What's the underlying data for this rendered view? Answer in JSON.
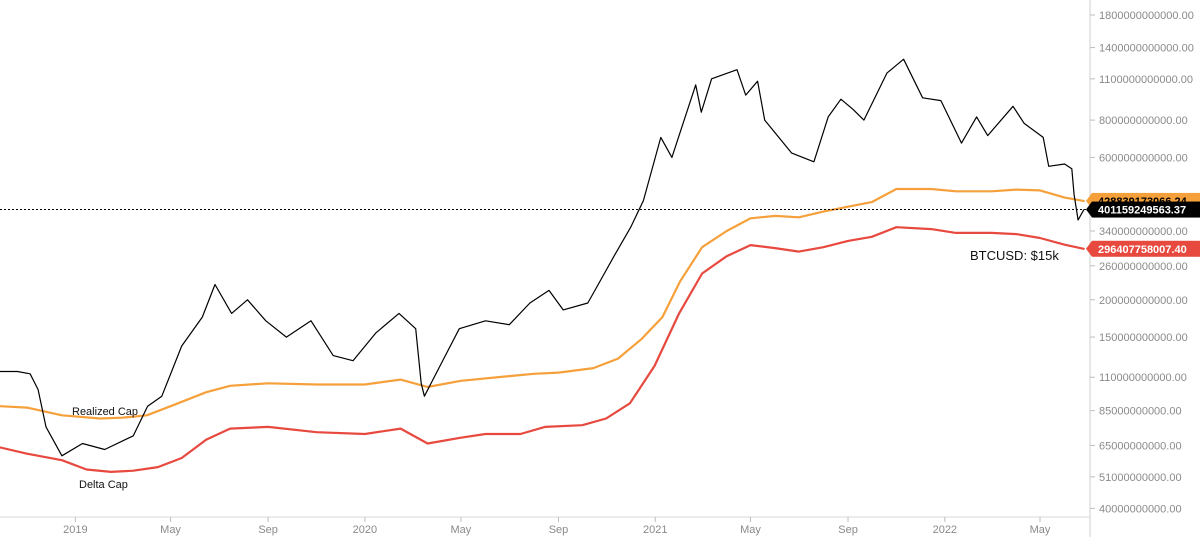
{
  "chart_data": {
    "type": "line",
    "y_axis_scale": "log",
    "y_ticks": [
      "1800000000000.00",
      "1400000000000.00",
      "1100000000000.00",
      "800000000000.00",
      "600000000000.00",
      "340000000000.00",
      "260000000000.00",
      "200000000000.00",
      "150000000000.00",
      "110000000000.00",
      "85000000000.00",
      "65000000000.00",
      "51000000000.00",
      "40000000000.00"
    ],
    "y_tick_values": [
      1800000000000,
      1400000000000,
      1100000000000,
      800000000000,
      600000000000,
      340000000000,
      260000000000,
      200000000000,
      150000000000,
      110000000000,
      85000000000,
      65000000000,
      51000000000,
      40000000000
    ],
    "x_ticks": [
      {
        "label": "2019",
        "date": "2019-01-01"
      },
      {
        "label": "May",
        "date": "2019-05-01"
      },
      {
        "label": "Sep",
        "date": "2019-09-01"
      },
      {
        "label": "2020",
        "date": "2020-01-01"
      },
      {
        "label": "May",
        "date": "2020-05-01"
      },
      {
        "label": "Sep",
        "date": "2020-09-01"
      },
      {
        "label": "2021",
        "date": "2021-01-01"
      },
      {
        "label": "May",
        "date": "2021-05-01"
      },
      {
        "label": "Sep",
        "date": "2021-09-01"
      },
      {
        "label": "2022",
        "date": "2022-01-01"
      },
      {
        "label": "May",
        "date": "2022-05-01"
      }
    ],
    "x_range": [
      "2018-09-28",
      "2022-07-03"
    ],
    "y_range": [
      38000000000,
      1900000000000
    ],
    "series": [
      {
        "key": "market",
        "color": "#000000",
        "x": [
          "2018-09-28",
          "2018-10-20",
          "2018-11-05",
          "2018-11-15",
          "2018-11-25",
          "2018-12-15",
          "2019-01-10",
          "2019-02-07",
          "2019-03-15",
          "2019-04-02",
          "2019-04-20",
          "2019-05-15",
          "2019-06-10",
          "2019-06-26",
          "2019-07-17",
          "2019-08-06",
          "2019-08-29",
          "2019-09-24",
          "2019-10-25",
          "2019-11-22",
          "2019-12-17",
          "2020-01-15",
          "2020-02-13",
          "2020-03-05",
          "2020-03-12",
          "2020-03-16",
          "2020-04-10",
          "2020-04-29",
          "2020-06-01",
          "2020-07-01",
          "2020-07-27",
          "2020-08-20",
          "2020-09-07",
          "2020-10-08",
          "2020-10-21",
          "2020-11-10",
          "2020-12-01",
          "2020-12-17",
          "2021-01-08",
          "2021-01-22",
          "2021-02-21",
          "2021-02-28",
          "2021-03-13",
          "2021-04-14",
          "2021-04-25",
          "2021-05-10",
          "2021-05-19",
          "2021-06-22",
          "2021-07-20",
          "2021-08-07",
          "2021-08-23",
          "2021-09-07",
          "2021-09-21",
          "2021-10-20",
          "2021-11-10",
          "2021-12-04",
          "2021-12-27",
          "2022-01-22",
          "2022-02-10",
          "2022-02-24",
          "2022-03-28",
          "2022-04-11",
          "2022-05-05",
          "2022-05-12",
          "2022-06-01",
          "2022-06-10",
          "2022-06-13",
          "2022-06-18",
          "2022-06-25"
        ],
        "y": [
          115000000000,
          115000000000,
          113000000000,
          100000000000,
          75000000000,
          60000000000,
          66000000000,
          63000000000,
          70000000000,
          88000000000,
          95000000000,
          140000000000,
          175000000000,
          225000000000,
          180000000000,
          200000000000,
          170000000000,
          150000000000,
          170000000000,
          130000000000,
          125000000000,
          155000000000,
          180000000000,
          160000000000,
          105000000000,
          95000000000,
          128000000000,
          160000000000,
          170000000000,
          165000000000,
          195000000000,
          215000000000,
          185000000000,
          195000000000,
          225000000000,
          280000000000,
          350000000000,
          430000000000,
          700000000000,
          600000000000,
          1050000000000,
          850000000000,
          1100000000000,
          1180000000000,
          970000000000,
          1080000000000,
          800000000000,
          620000000000,
          580000000000,
          820000000000,
          940000000000,
          870000000000,
          800000000000,
          1150000000000,
          1280000000000,
          950000000000,
          930000000000,
          670000000000,
          820000000000,
          710000000000,
          890000000000,
          780000000000,
          700000000000,
          560000000000,
          570000000000,
          550000000000,
          450000000000,
          370000000000,
          400000000000
        ]
      },
      {
        "key": "realized",
        "color": "#f5a03a",
        "x": [
          "2018-09-28",
          "2018-11-01",
          "2018-12-15",
          "2019-02-01",
          "2019-03-01",
          "2019-04-01",
          "2019-05-01",
          "2019-06-15",
          "2019-07-15",
          "2019-09-01",
          "2019-11-01",
          "2020-01-01",
          "2020-02-15",
          "2020-03-20",
          "2020-05-01",
          "2020-07-01",
          "2020-08-01",
          "2020-09-01",
          "2020-10-15",
          "2020-11-15",
          "2020-12-15",
          "2021-01-10",
          "2021-02-01",
          "2021-03-01",
          "2021-04-01",
          "2021-05-01",
          "2021-06-01",
          "2021-07-01",
          "2021-08-01",
          "2021-09-01",
          "2021-10-01",
          "2021-11-01",
          "2021-12-15",
          "2022-01-15",
          "2022-03-01",
          "2022-04-01",
          "2022-05-01",
          "2022-06-01",
          "2022-06-25"
        ],
        "y": [
          88000000000,
          87000000000,
          82000000000,
          80000000000,
          80500000000,
          82000000000,
          88000000000,
          98000000000,
          103000000000,
          105000000000,
          104000000000,
          104000000000,
          108000000000,
          102000000000,
          107000000000,
          111000000000,
          113000000000,
          114000000000,
          118000000000,
          127000000000,
          148000000000,
          175000000000,
          230000000000,
          300000000000,
          340000000000,
          375000000000,
          382000000000,
          378000000000,
          395000000000,
          410000000000,
          425000000000,
          470000000000,
          470000000000,
          462000000000,
          462000000000,
          468000000000,
          465000000000,
          440000000000,
          428839173066.24
        ]
      },
      {
        "key": "delta",
        "color": "#e8493f",
        "x": [
          "2018-09-28",
          "2018-11-01",
          "2018-12-15",
          "2019-01-15",
          "2019-02-15",
          "2019-03-15",
          "2019-04-15",
          "2019-05-15",
          "2019-06-15",
          "2019-07-15",
          "2019-09-01",
          "2019-11-01",
          "2020-01-01",
          "2020-02-15",
          "2020-03-20",
          "2020-05-01",
          "2020-06-01",
          "2020-07-15",
          "2020-08-15",
          "2020-10-01",
          "2020-10-31",
          "2020-11-30",
          "2020-12-31",
          "2021-01-31",
          "2021-03-01",
          "2021-04-01",
          "2021-05-01",
          "2021-06-01",
          "2021-07-01",
          "2021-08-01",
          "2021-09-01",
          "2021-10-01",
          "2021-11-01",
          "2021-12-15",
          "2022-01-15",
          "2022-03-01",
          "2022-04-01",
          "2022-05-01",
          "2022-06-01",
          "2022-06-25"
        ],
        "y": [
          64000000000,
          61000000000,
          58000000000,
          54000000000,
          53000000000,
          53500000000,
          55000000000,
          59000000000,
          68000000000,
          74000000000,
          75000000000,
          72000000000,
          71000000000,
          74000000000,
          66000000000,
          69000000000,
          71000000000,
          71000000000,
          75000000000,
          76000000000,
          80000000000,
          90000000000,
          120000000000,
          180000000000,
          245000000000,
          280000000000,
          305000000000,
          298000000000,
          290000000000,
          300000000000,
          315000000000,
          325000000000,
          350000000000,
          345000000000,
          335000000000,
          335000000000,
          332000000000,
          322000000000,
          306000000000,
          296407758007.4
        ]
      }
    ],
    "price_line": 401159249563.37,
    "price_tags": [
      {
        "key": "realized",
        "text": "428839173066.24",
        "value": 428839173066.24,
        "bg": "#f5a03a",
        "fg": "#000000"
      },
      {
        "key": "market",
        "text": "401159249563.37",
        "value": 401159249563.37,
        "bg": "#000000",
        "fg": "#ffffff"
      },
      {
        "key": "delta",
        "text": "296407758007.40",
        "value": 296407758007.4,
        "bg": "#e8493f",
        "fg": "#ffffff"
      }
    ],
    "annotations": {
      "realized": "Realized Cap",
      "delta": "Delta Cap",
      "btcusd": "BTCUSD: $15k"
    },
    "grid": false
  }
}
